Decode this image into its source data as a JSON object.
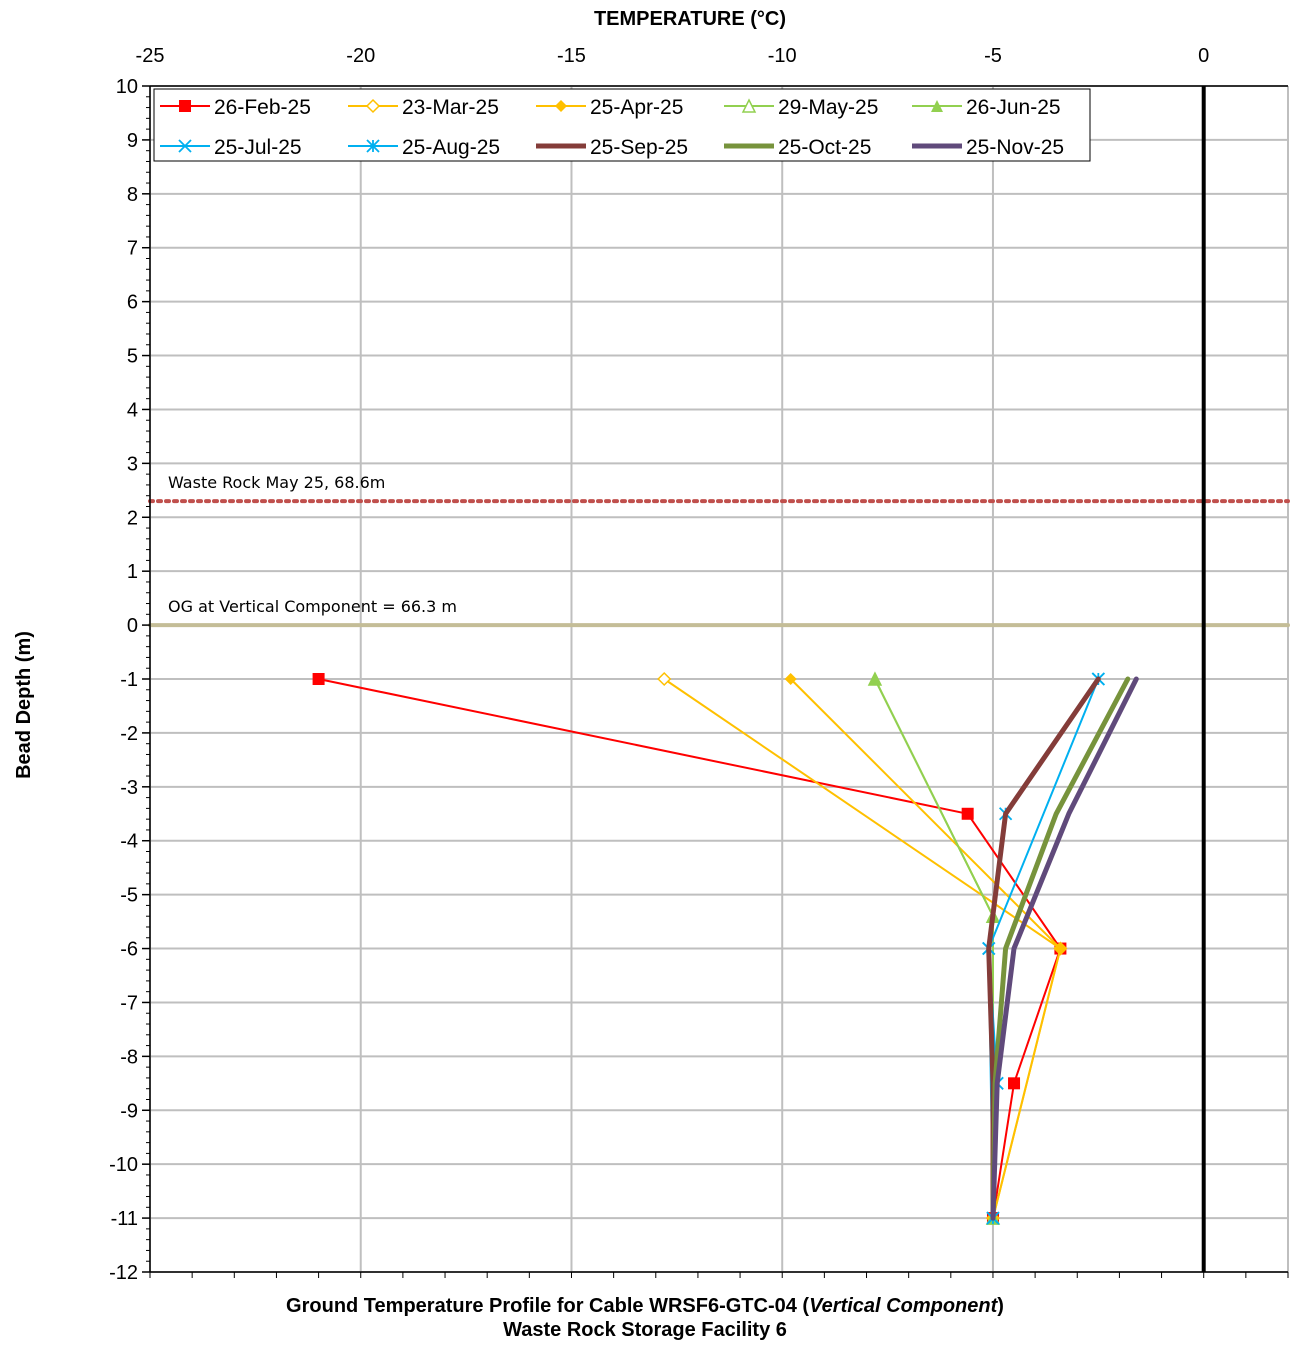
{
  "chart_data": {
    "type": "line",
    "x_axis_title": "TEMPERATURE (°C)",
    "y_axis_title": "Bead Depth (m)",
    "caption_line1_pre": "Ground Temperature Profile for Cable WRSF6-GTC-04 (",
    "caption_line1_italic": "Vertical Component",
    "caption_line1_post": ")",
    "caption_line2": "Waste Rock Storage Facility 6",
    "xlim": [
      -25,
      2
    ],
    "ylim": [
      -12,
      10
    ],
    "x_ticks": [
      -25,
      -20,
      -15,
      -10,
      -5,
      0
    ],
    "y_ticks": [
      10,
      9,
      8,
      7,
      6,
      5,
      4,
      3,
      2,
      1,
      0,
      -1,
      -2,
      -3,
      -4,
      -5,
      -6,
      -7,
      -8,
      -9,
      -10,
      -11,
      -12
    ],
    "x_axis_position": "top",
    "grid": true,
    "legend_position": "top-left",
    "reference_lines": [
      {
        "label": "Waste Rock May 25, 68.6m",
        "y": 2.3,
        "style": "dotted",
        "color": "#c0504d"
      },
      {
        "label": "OG at Vertical Component = 66.3 m",
        "y": 0,
        "style": "solid",
        "color": "#c4bd97"
      }
    ],
    "zero_line": {
      "x": 0,
      "color": "#000000"
    },
    "series": [
      {
        "name": "26-Feb-25",
        "color": "#ff0000",
        "marker": "square",
        "width": 2,
        "points": [
          [
            -21,
            -1
          ],
          [
            -5.6,
            -3.5
          ],
          [
            -3.4,
            -6
          ],
          [
            -4.5,
            -8.5
          ],
          [
            -5,
            -11
          ]
        ]
      },
      {
        "name": "23-Mar-25",
        "color": "#ffc000",
        "marker": "diamond-open",
        "width": 2,
        "points": [
          [
            -12.8,
            -1
          ],
          [
            -3.4,
            -6
          ],
          [
            -5,
            -11
          ]
        ]
      },
      {
        "name": "25-Apr-25",
        "color": "#ffc000",
        "marker": "diamond",
        "width": 2,
        "points": [
          [
            -9.8,
            -1
          ],
          [
            -3.4,
            -6
          ],
          [
            -5,
            -11
          ]
        ]
      },
      {
        "name": "29-May-25",
        "color": "#92d050",
        "marker": "triangle-open",
        "width": 2,
        "points": [
          [
            -7.8,
            -1
          ],
          [
            -5,
            -5.4
          ],
          [
            -5,
            -11
          ]
        ]
      },
      {
        "name": "26-Jun-25",
        "color": "#92d050",
        "marker": "triangle",
        "width": 2,
        "points": [
          [
            -7.8,
            -1
          ],
          [
            -5,
            -5.4
          ],
          [
            -5,
            -11
          ]
        ]
      },
      {
        "name": "25-Jul-25",
        "color": "#00b0f0",
        "marker": "x",
        "width": 2,
        "points": [
          [
            -2.5,
            -1
          ],
          [
            -5.1,
            -6
          ],
          [
            -5,
            -11
          ]
        ]
      },
      {
        "name": "25-Aug-25",
        "color": "#00b0f0",
        "marker": "asterisk",
        "width": 2,
        "points": [
          [
            -2.5,
            -1
          ],
          [
            -4.7,
            -3.5
          ],
          [
            -5.1,
            -6
          ],
          [
            -4.9,
            -8.5
          ],
          [
            -5,
            -11
          ]
        ]
      },
      {
        "name": "25-Sep-25",
        "color": "#843c39",
        "marker": "none",
        "width": 5,
        "points": [
          [
            -2.5,
            -1
          ],
          [
            -4.7,
            -3.5
          ],
          [
            -5.1,
            -6
          ],
          [
            -5,
            -8.5
          ],
          [
            -5,
            -11
          ]
        ]
      },
      {
        "name": "25-Oct-25",
        "color": "#77933c",
        "marker": "none",
        "width": 5,
        "points": [
          [
            -1.8,
            -1
          ],
          [
            -3.5,
            -3.5
          ],
          [
            -4.7,
            -6
          ],
          [
            -4.95,
            -8.5
          ],
          [
            -5,
            -11
          ]
        ]
      },
      {
        "name": "25-Nov-25",
        "color": "#604a7b",
        "marker": "none",
        "width": 5,
        "points": [
          [
            -1.6,
            -1
          ],
          [
            -3.2,
            -3.5
          ],
          [
            -4.5,
            -6
          ],
          [
            -4.9,
            -8.5
          ],
          [
            -5,
            -11
          ]
        ]
      }
    ]
  }
}
